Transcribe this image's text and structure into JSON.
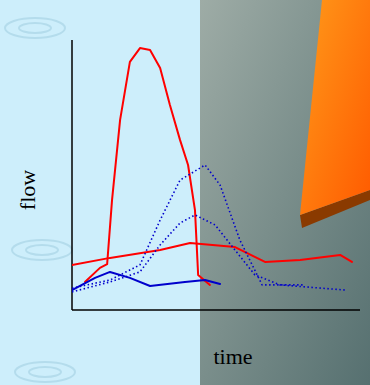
{
  "chart_data": {
    "type": "line",
    "x_label": "time",
    "y_label": "flow",
    "xlim": [
      0,
      100
    ],
    "ylim": [
      0,
      100
    ],
    "xticks": [],
    "yticks": [],
    "tick_labels": false,
    "grid": false,
    "series": [
      {
        "color": "#ff0000",
        "line_style": "solid",
        "x": [
          4.5,
          9.7,
          12.2,
          13.9,
          16.7,
          20.1,
          23.6,
          27.1,
          30.6,
          34.0,
          37.5,
          40.3,
          42.7,
          43.8,
          47.9
        ],
        "values": [
          10.4,
          15.6,
          17.0,
          40.7,
          70.4,
          91.9,
          97.0,
          96.3,
          89.6,
          75.9,
          63.0,
          53.7,
          37.0,
          13.0,
          9.3
        ]
      },
      {
        "color": "#ff0000",
        "line_style": "solid",
        "x": [
          0,
          13.2,
          30.6,
          41.0,
          56.6,
          67.0,
          79.2,
          93.1,
          97.2
        ],
        "values": [
          16.7,
          19.3,
          22.2,
          24.8,
          23.3,
          17.8,
          18.5,
          20.4,
          17.8
        ]
      },
      {
        "color": "#0000cc",
        "line_style": "solid",
        "x": [
          0,
          8.0,
          13.2,
          20.1,
          27.1,
          39.2,
          46.2,
          51.4
        ],
        "values": [
          7.4,
          11.9,
          14.1,
          11.9,
          8.9,
          10.4,
          11.1,
          9.6
        ]
      },
      {
        "color": "#0000cc",
        "line_style": "dotted",
        "x": [
          0,
          13.2,
          23.6,
          30.6,
          37.5,
          46.2,
          51.4,
          58.3,
          66.0,
          80.9
        ],
        "values": [
          8.1,
          11.1,
          16.7,
          33.3,
          48.1,
          53.7,
          46.3,
          25.9,
          9.3,
          9.3
        ]
      },
      {
        "color": "#0000cc",
        "line_style": "dotted",
        "x": [
          0,
          13.2,
          23.6,
          30.6,
          37.5,
          42.7,
          49.7,
          56.6,
          63.5,
          72.2,
          94.8
        ],
        "values": [
          6.7,
          10.4,
          14.1,
          24.1,
          32.2,
          35.2,
          31.5,
          22.2,
          13.0,
          9.3,
          7.4
        ]
      }
    ]
  }
}
